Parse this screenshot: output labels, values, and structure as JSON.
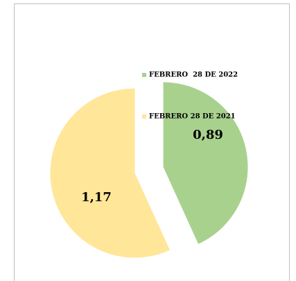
{
  "chart_data": {
    "type": "pie",
    "categories": [
      "FEBRERO  28 DE 2022",
      "FEBRERO 28 DE 2021"
    ],
    "values": [
      0.89,
      1.17
    ],
    "value_labels": [
      "0,89",
      "1,17"
    ],
    "colors": [
      "#a9d18e",
      "#ffe699"
    ]
  }
}
